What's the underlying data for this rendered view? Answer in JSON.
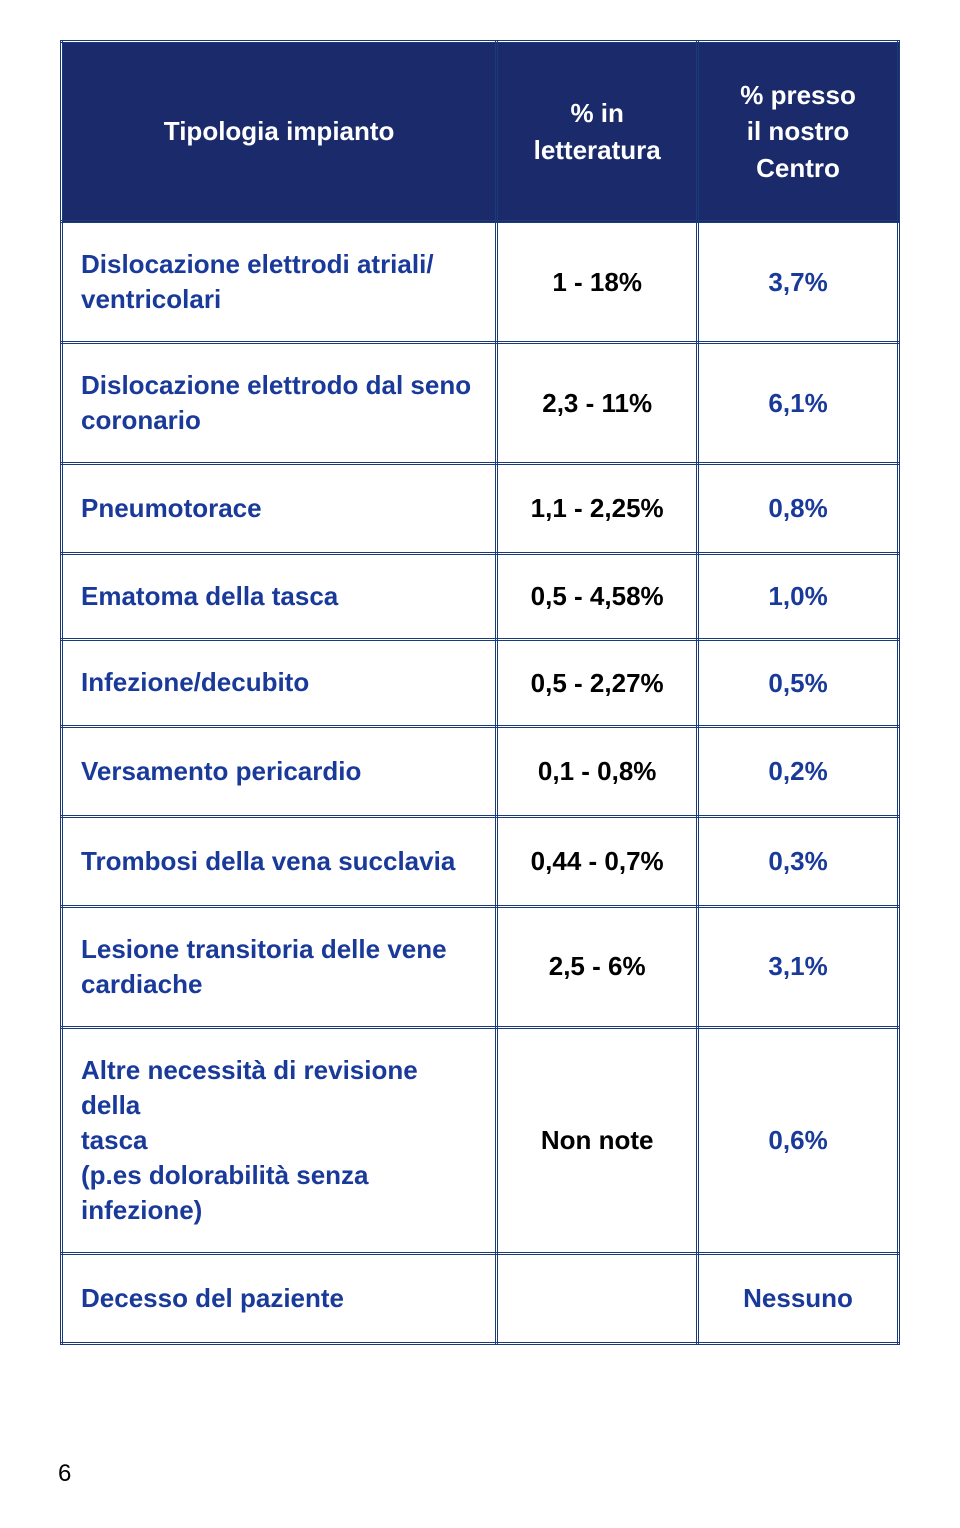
{
  "colors": {
    "header_bg": "#1a2a6a",
    "header_text": "#ffffff",
    "border": "#1a3a7a",
    "label_text": "#1a3a9a",
    "value_text": "#000000",
    "background": "#ffffff"
  },
  "typography": {
    "font_family": "Arial, Helvetica, sans-serif",
    "header_fontsize": 26,
    "cell_fontsize": 26,
    "font_weight": "bold"
  },
  "layout": {
    "col_widths_pct": [
      52,
      24,
      24
    ],
    "border_style": "double",
    "border_width": 3
  },
  "header": {
    "c0": "Tipologia impianto",
    "c1_line1": "% in",
    "c1_line2": "letteratura",
    "c2_line1": "% presso",
    "c2_line2": "il nostro",
    "c2_line3": "Centro"
  },
  "rows": {
    "r0": {
      "label_l1": "Dislocazione elettrodi atriali/",
      "label_l2": "ventricolari",
      "v1": "1 - 18%",
      "v2": "3,7%"
    },
    "r1": {
      "label_l1": "Dislocazione elettrodo dal seno",
      "label_l2": "coronario",
      "v1": "2,3 - 11%",
      "v2": "6,1%"
    },
    "r2": {
      "label": "Pneumotorace",
      "v1": "1,1 - 2,25%",
      "v2": "0,8%"
    },
    "r3": {
      "label": "Ematoma della tasca",
      "v1": "0,5 - 4,58%",
      "v2": "1,0%"
    },
    "r4": {
      "label": "Infezione/decubito",
      "v1": "0,5 - 2,27%",
      "v2": "0,5%"
    },
    "r5": {
      "label": "Versamento pericardio",
      "v1": "0,1 - 0,8%",
      "v2": "0,2%"
    },
    "r6": {
      "label": "Trombosi della vena succlavia",
      "v1": "0,44 - 0,7%",
      "v2": "0,3%"
    },
    "r7": {
      "label_l1": "Lesione transitoria delle vene",
      "label_l2": "cardiache",
      "v1": "2,5 - 6%",
      "v2": "3,1%"
    },
    "r8": {
      "label_l1": "Altre necessità di revisione della",
      "label_l2": "tasca",
      "label_l3": "(p.es dolorabilità senza infezione)",
      "v1": "Non note",
      "v2": "0,6%"
    },
    "r9": {
      "label": "Decesso del paziente",
      "v1": "",
      "v2": "Nessuno"
    }
  },
  "page_number": "6"
}
